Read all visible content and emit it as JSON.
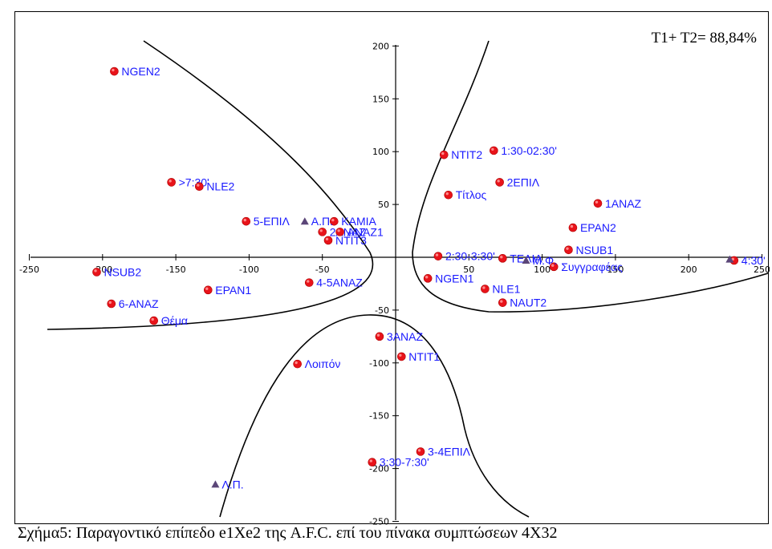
{
  "annotation": "T1+ T2= 88,84%",
  "caption": "Σχήμα5: Παραγοντικό επίπεδο e1Xe2 της A.F.C. επί του πίνακα συμπτώσεων 4Χ32",
  "colors": {
    "point": "#e8131a",
    "point_highlight": "#ff8a8a",
    "label": "#1a1aff",
    "triangle": "#5b4678",
    "axis": "#000000",
    "curve": "#000000"
  },
  "chart_data": {
    "type": "scatter",
    "xlim": [
      -250,
      250
    ],
    "ylim": [
      -250,
      200
    ],
    "xticks": [
      -250,
      -200,
      -150,
      -100,
      -50,
      0,
      50,
      100,
      150,
      200,
      250
    ],
    "xtick_labels": [
      "-250",
      "-200",
      "-150",
      "-100",
      "-50",
      "0",
      "50",
      "100",
      "150",
      "200",
      "250"
    ],
    "yticks": [
      -250,
      -200,
      -150,
      -100,
      -50,
      50,
      100,
      150,
      200
    ],
    "ytick_labels": [
      "-250",
      "-200",
      "-150",
      "-100",
      "-50",
      "50",
      "100",
      "150",
      "200"
    ],
    "grid": false,
    "points": [
      {
        "x": -192,
        "y": 176,
        "label": "NGEN2"
      },
      {
        "x": -153,
        "y": 71,
        "label": ">7:30'"
      },
      {
        "x": -134,
        "y": 67,
        "label": "NLE2"
      },
      {
        "x": -102,
        "y": 34,
        "label": "5-ΕΠΙΛ"
      },
      {
        "x": -42,
        "y": 34,
        "label": "ΚΑΜΙΑ"
      },
      {
        "x": -50,
        "y": 24,
        "label": "2ΑΝΑΖ"
      },
      {
        "x": -38,
        "y": 24,
        "label": "ΑΝΑΖ1"
      },
      {
        "x": -46,
        "y": 16,
        "label": "NTIT3"
      },
      {
        "x": -204,
        "y": -14,
        "label": "NSUB2"
      },
      {
        "x": -128,
        "y": -31,
        "label": "EPAN1"
      },
      {
        "x": -59,
        "y": -24,
        "label": "4-5ΑΝΑΖ"
      },
      {
        "x": -194,
        "y": -44,
        "label": "6-ΑΝΑΖ"
      },
      {
        "x": -165,
        "y": -60,
        "label": "Θέμα"
      },
      {
        "x": -67,
        "y": -101,
        "label": "Λοιπόν"
      },
      {
        "x": 33,
        "y": 97,
        "label": "NTIT2"
      },
      {
        "x": 67,
        "y": 101,
        "label": "1:30-02:30'"
      },
      {
        "x": 71,
        "y": 71,
        "label": "2ΕΠΙΛ"
      },
      {
        "x": 36,
        "y": 59,
        "label": "Τίτλος"
      },
      {
        "x": 138,
        "y": 51,
        "label": "1ΑΝΑΖ"
      },
      {
        "x": 121,
        "y": 28,
        "label": "EPAN2"
      },
      {
        "x": 118,
        "y": 7,
        "label": "NSUB1"
      },
      {
        "x": 29,
        "y": 1,
        "label": "2:30-3:30'"
      },
      {
        "x": 73,
        "y": -1,
        "label": "ΤΕΛΙΑ"
      },
      {
        "x": 108,
        "y": -9,
        "label": "Συγγραφέας"
      },
      {
        "x": 22,
        "y": -20,
        "label": "NGEN1"
      },
      {
        "x": 61,
        "y": -30,
        "label": "NLE1"
      },
      {
        "x": 73,
        "y": -43,
        "label": "NAUT2"
      },
      {
        "x": 231,
        "y": -3,
        "label": "4:30'"
      },
      {
        "x": -11,
        "y": -75,
        "label": "3ΑΝΑΖ"
      },
      {
        "x": 4,
        "y": -94,
        "label": "NTIT1"
      },
      {
        "x": 17,
        "y": -184,
        "label": "3-4ΕΠΙΛ"
      },
      {
        "x": -16,
        "y": -194,
        "label": "3:30-7:30'"
      }
    ],
    "triangles": [
      {
        "x": -62,
        "y": 34,
        "label": "Α.Π."
      },
      {
        "x": 89,
        "y": -3,
        "label": "Μ.Φ."
      },
      {
        "x": -123,
        "y": -215,
        "label": "Λ.Π."
      },
      {
        "x": 228,
        "y": -2,
        "label": ""
      }
    ]
  }
}
